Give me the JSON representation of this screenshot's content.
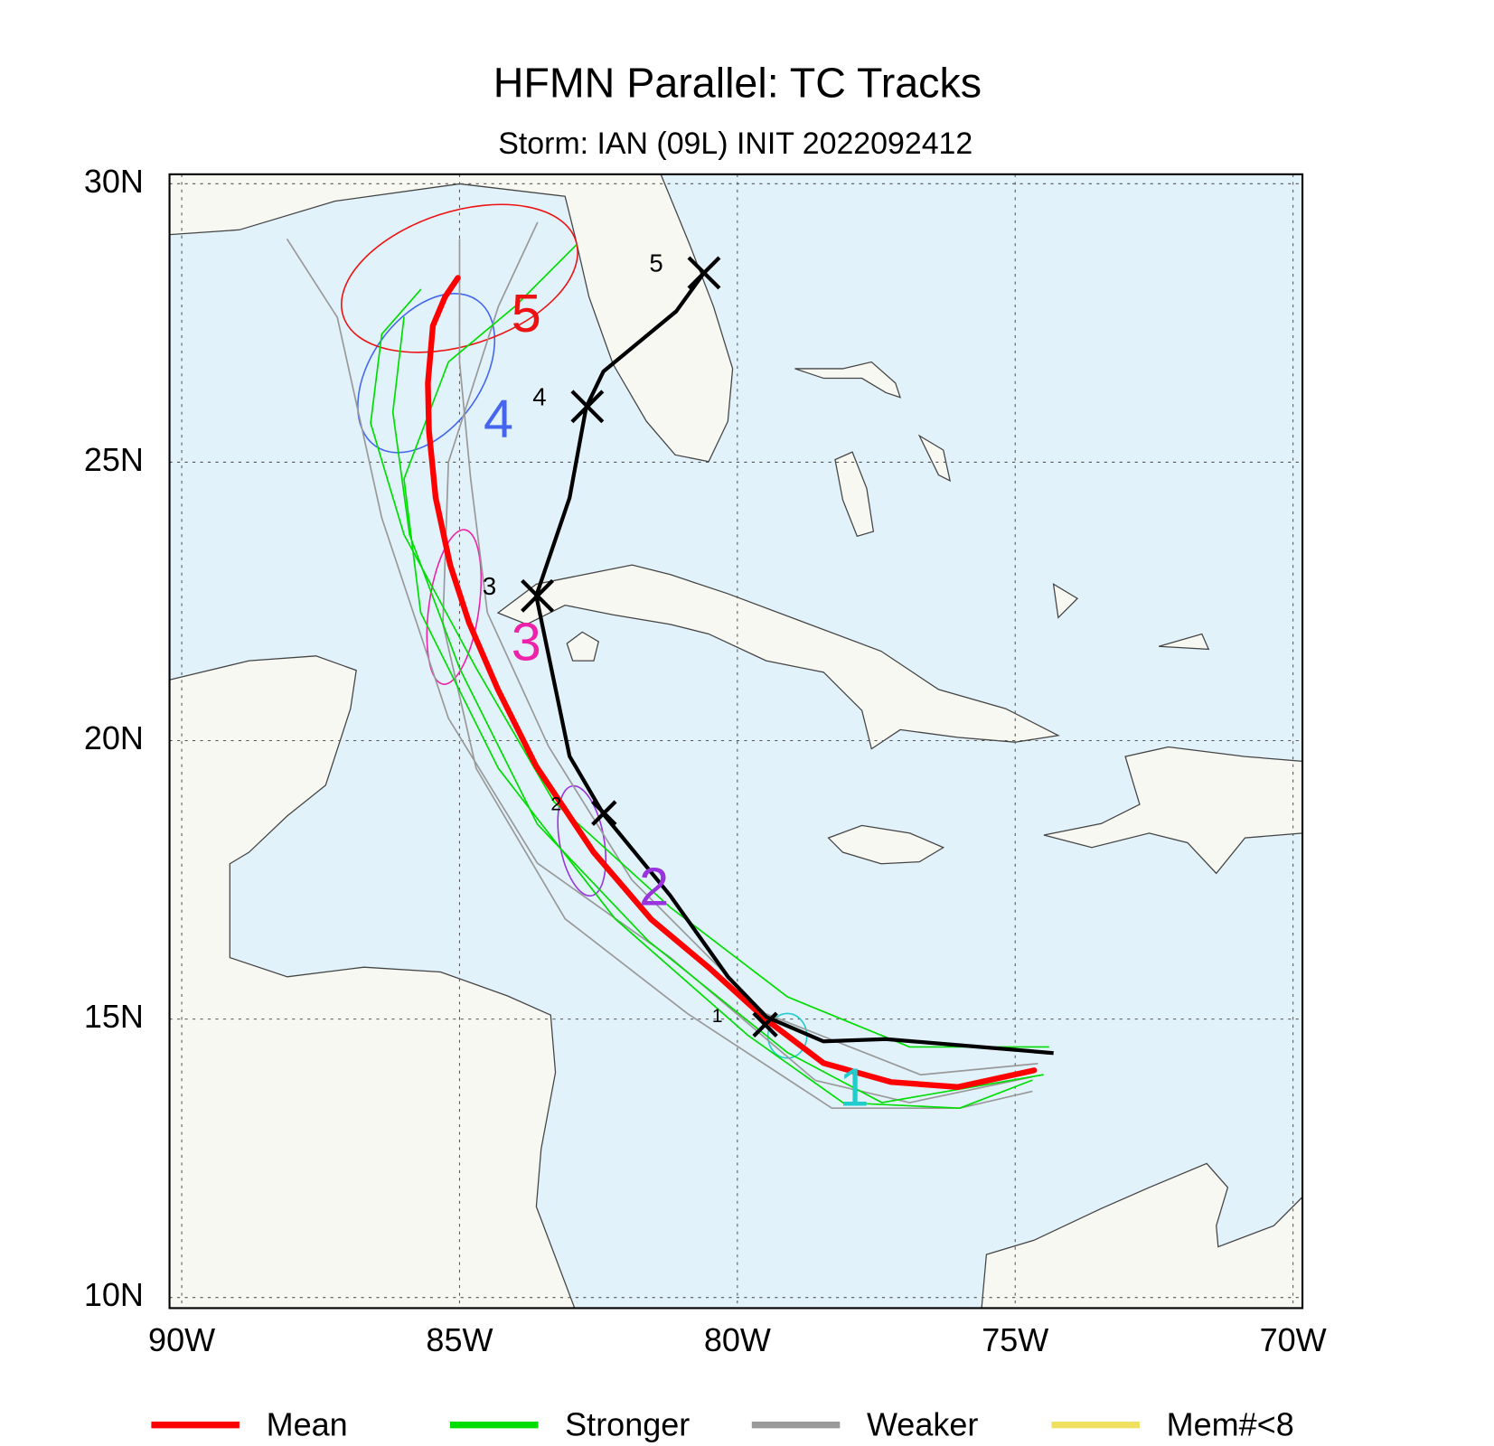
{
  "chart_data": {
    "type": "track-map",
    "title": "HFMN Parallel: TC Tracks",
    "subtitle": "Storm: IAN (09L) INIT 2022092412",
    "xlim": [
      -90.22,
      -69.83
    ],
    "ylim": [
      9.81,
      30.17
    ],
    "xticks": [
      {
        "value": -90,
        "label": "90W"
      },
      {
        "value": -85,
        "label": "85W"
      },
      {
        "value": -80,
        "label": "80W"
      },
      {
        "value": -75,
        "label": "75W"
      },
      {
        "value": -70,
        "label": "70W"
      }
    ],
    "yticks": [
      {
        "value": 10,
        "label": "10N"
      },
      {
        "value": 15,
        "label": "15N"
      },
      {
        "value": 20,
        "label": "20N"
      },
      {
        "value": 25,
        "label": "25N"
      },
      {
        "value": 30,
        "label": "30N"
      }
    ],
    "grid": true,
    "series": [
      {
        "name": "Weaker",
        "color": "#999999",
        "tracks": [
          {
            "lon": [
              -74.7,
              -76.9,
              -78.6,
              -81.2,
              -83.6,
              -85.2,
              -86.4,
              -87.2,
              -88.1
            ],
            "lat": [
              13.96,
              13.5,
              13.9,
              16.1,
              17.8,
              20.4,
              24.0,
              27.6,
              29.0
            ]
          },
          {
            "lon": [
              -74.6,
              -76.7,
              -79.5,
              -81.9,
              -83.4,
              -84.5,
              -84.8,
              -85.0,
              -85.0
            ],
            "lat": [
              14.2,
              14.0,
              15.1,
              17.5,
              19.9,
              22.3,
              24.7,
              26.8,
              29.0
            ]
          },
          {
            "lon": [
              -74.7,
              -76.0,
              -78.3,
              -80.9,
              -83.1,
              -84.7,
              -85.3,
              -85.2,
              -84.3,
              -83.6
            ],
            "lat": [
              13.7,
              13.4,
              13.4,
              15.1,
              16.8,
              19.5,
              22.1,
              25.0,
              27.8,
              29.3
            ]
          }
        ]
      },
      {
        "name": "Stronger",
        "color": "#00dd00",
        "tracks": [
          {
            "lon": [
              -74.4,
              -76.9,
              -79.1,
              -81.2,
              -83.3,
              -84.7,
              -86.0,
              -86.6,
              -86.4,
              -85.7
            ],
            "lat": [
              14.5,
              14.5,
              15.4,
              17.0,
              18.9,
              21.3,
              23.7,
              25.7,
              27.3,
              28.1
            ]
          },
          {
            "lon": [
              -74.5,
              -77.4,
              -79.1,
              -81.6,
              -83.6,
              -85.0,
              -85.9,
              -86.2,
              -86.0
            ],
            "lat": [
              14.0,
              13.5,
              14.4,
              16.4,
              18.5,
              21.3,
              23.7,
              25.9,
              27.6
            ]
          },
          {
            "lon": [
              -74.7,
              -76.0,
              -78.1,
              -79.8,
              -82.2,
              -84.3,
              -85.7,
              -86.0,
              -85.2,
              -84.0,
              -82.9
            ],
            "lat": [
              13.9,
              13.4,
              13.5,
              14.7,
              16.8,
              19.5,
              22.3,
              24.7,
              26.8,
              27.8,
              28.9
            ]
          }
        ]
      },
      {
        "name": "Mean",
        "color": "#ff0000",
        "tracks": [
          {
            "lon": [
              -74.66,
              -76.03,
              -77.24,
              -78.45,
              -79.48,
              -80.52,
              -81.55,
              -82.59,
              -83.62,
              -84.31,
              -84.83,
              -85.17,
              -85.43,
              -85.55,
              -85.57,
              -85.48,
              -85.26,
              -85.03
            ],
            "lat": [
              14.08,
              13.78,
              13.87,
              14.21,
              14.99,
              15.93,
              16.79,
              18.0,
              19.54,
              20.92,
              22.12,
              23.16,
              24.36,
              25.56,
              26.42,
              27.45,
              27.97,
              28.31
            ]
          }
        ]
      },
      {
        "name": "Mem#<8",
        "color": "#f0e060",
        "tracks": []
      }
    ],
    "observed": {
      "color": "#000000",
      "lon": [
        -74.31,
        -77.33,
        -78.45,
        -79.48,
        -80.17,
        -81.21,
        -82.41,
        -83.02,
        -83.62,
        -83.02,
        -82.72,
        -82.41,
        -81.1,
        -80.6
      ],
      "lat": [
        14.39,
        14.64,
        14.6,
        15.04,
        15.76,
        17.22,
        18.68,
        19.72,
        22.6,
        24.36,
        25.99,
        26.63,
        27.71,
        28.4
      ],
      "days": [
        {
          "label": "1",
          "lon": -79.5,
          "lat": 14.9
        },
        {
          "label": "2",
          "lon": -82.4,
          "lat": 18.7
        },
        {
          "label": "3",
          "lon": -83.6,
          "lat": 22.6
        },
        {
          "label": "4",
          "lon": -82.7,
          "lat": 26.0
        },
        {
          "label": "5",
          "lon": -80.6,
          "lat": 28.4
        }
      ]
    },
    "ellipses": [
      {
        "label": "1",
        "color": "#22cccc",
        "lon": -79.1,
        "lat": 14.7,
        "lon_radius": 0.35,
        "lat_radius": 0.4,
        "angle": 0,
        "label_lon": -77.9,
        "label_lat": 13.7
      },
      {
        "label": "2",
        "color": "#9933dd",
        "lon": -82.8,
        "lat": 18.2,
        "lon_radius": 0.4,
        "lat_radius": 1.0,
        "angle": -10,
        "label_lon": -81.5,
        "label_lat": 17.3
      },
      {
        "label": "3",
        "color": "#ee22aa",
        "lon": -85.1,
        "lat": 22.4,
        "lon_radius": 0.45,
        "lat_radius": 1.4,
        "angle": 8,
        "label_lon": -83.8,
        "label_lat": 21.7
      },
      {
        "label": "4",
        "color": "#4466ee",
        "lon": -85.6,
        "lat": 26.6,
        "lon_radius": 1.6,
        "lat_radius": 1.0,
        "angle": -55,
        "label_lon": -84.3,
        "label_lat": 25.7
      },
      {
        "label": "5",
        "color": "#ee1111",
        "lon": -85.0,
        "lat": 28.3,
        "lon_radius": 2.2,
        "lat_radius": 1.2,
        "angle": -18,
        "label_lon": -83.8,
        "label_lat": 27.6
      }
    ]
  }
}
